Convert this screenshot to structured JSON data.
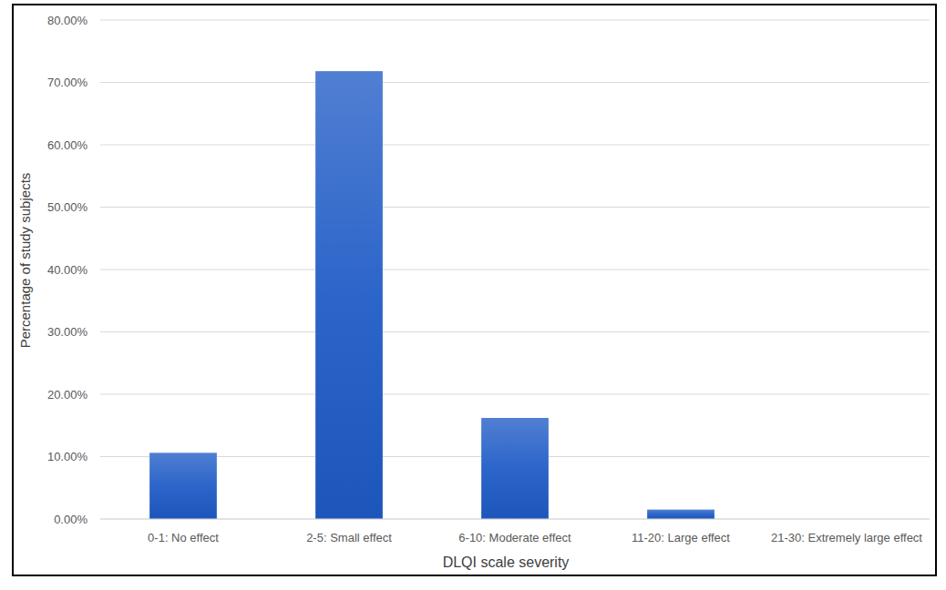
{
  "chart_data": {
    "type": "bar",
    "x_label": "DLQI scale severity",
    "y_label": "Percentage of study subjects",
    "categories": [
      "0-1: No effect",
      "2-5: Small effect",
      "6-10: Moderate effect",
      "11-20: Large effect",
      "21-30: Extremely large effect"
    ],
    "values": [
      10.6,
      71.8,
      16.2,
      1.5,
      0
    ],
    "color": "#1f5bc6",
    "ylim": [
      0,
      80
    ],
    "yticks": [
      {
        "value": 0,
        "label": "0.00%"
      },
      {
        "value": 10,
        "label": "10.00%"
      },
      {
        "value": 20,
        "label": "20.00%"
      },
      {
        "value": 30,
        "label": "30.00%"
      },
      {
        "value": 40,
        "label": "40.00%"
      },
      {
        "value": 50,
        "label": "50.00%"
      },
      {
        "value": 60,
        "label": "60.00%"
      },
      {
        "value": 70,
        "label": "70.00%"
      },
      {
        "value": 80,
        "label": "80.00%"
      }
    ],
    "grid": true
  }
}
